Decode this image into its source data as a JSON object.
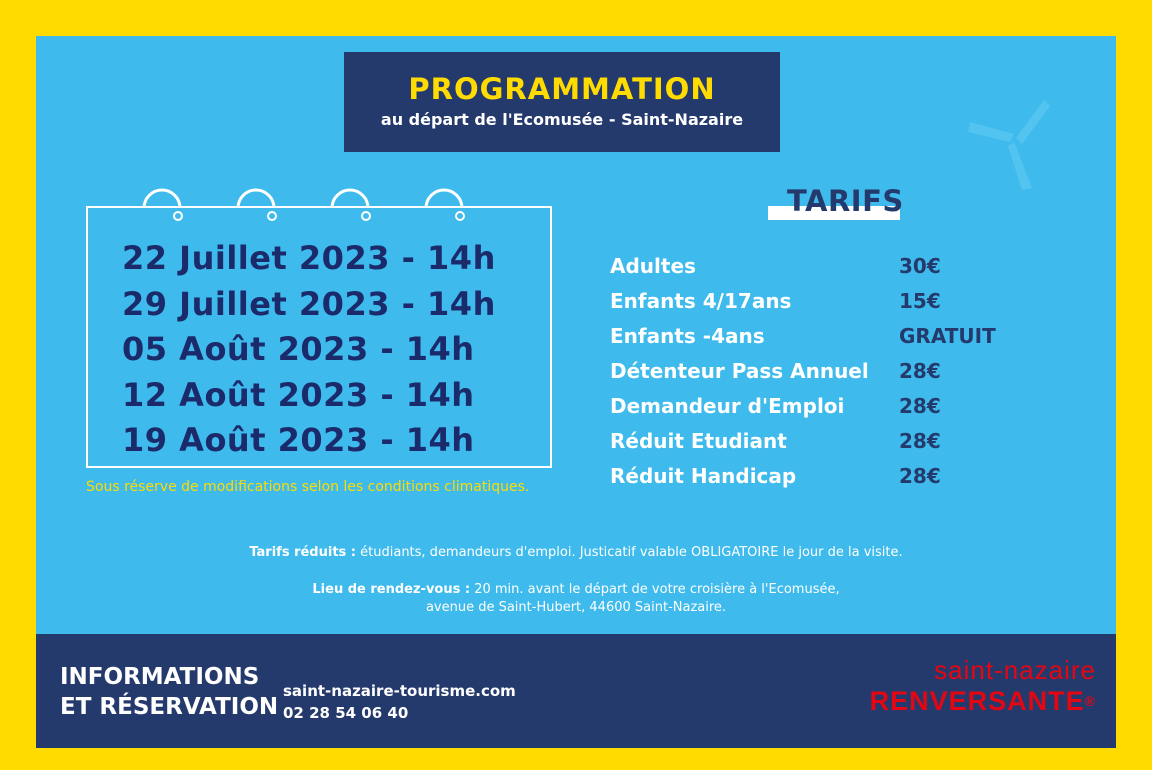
{
  "header": {
    "title": "PROGRAMMATION",
    "subtitle": "au départ de l'Ecomusée - Saint-Nazaire"
  },
  "dates": [
    "22 Juillet 2023 - 14h",
    "29 Juillet 2023 - 14h",
    "05 Août 2023 - 14h",
    "12 Août 2023 - 14h",
    "19 Août 2023 - 14h"
  ],
  "weather_note": "Sous réserve de modifications selon les conditions climatiques.",
  "tarifs": {
    "title": "TARIFS",
    "rows": [
      {
        "label": "Adultes",
        "price": "30€"
      },
      {
        "label": "Enfants 4/17ans",
        "price": "15€"
      },
      {
        "label": "Enfants -4ans",
        "price": "GRATUIT"
      },
      {
        "label": "Détenteur Pass Annuel",
        "price": "28€"
      },
      {
        "label": "Demandeur d'Emploi",
        "price": "28€"
      },
      {
        "label": "Réduit Etudiant",
        "price": "28€"
      },
      {
        "label": "Réduit Handicap",
        "price": "28€"
      }
    ]
  },
  "notes": {
    "reduced_label": "Tarifs réduits :",
    "reduced_text": " étudiants, demandeurs d'emploi. Justicatif valable OBLIGATOIRE le jour de la visite.",
    "meeting_label": "Lieu de rendez-vous :",
    "meeting_text": " 20 min. avant le départ de votre croisière à l'Ecomusée,",
    "meeting_text2": "avenue de Saint-Hubert, 44600 Saint-Nazaire."
  },
  "footer": {
    "info_line1": "INFORMATIONS",
    "info_line2": "ET RÉSERVATION",
    "website": "saint-nazaire-tourisme.com",
    "phone": "02 28 54 06 40",
    "logo_top": "saint-nazaire",
    "logo_bottom": "RENVERSANTE",
    "logo_mark": "®"
  },
  "colors": {
    "background": "#FFDB00",
    "panel": "#3EBBEC",
    "navy": "#253A6C",
    "yellow": "#FFDB00",
    "logo_red": "#E30613"
  },
  "icons": [
    "boomerang-icon",
    "calendar-ring-icon"
  ]
}
